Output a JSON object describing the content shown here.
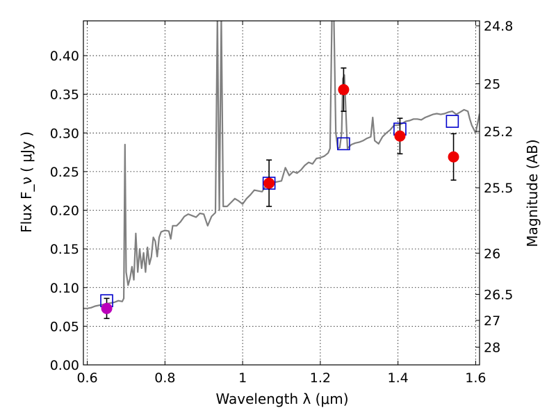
{
  "chart_data": {
    "type": "scatter",
    "title": "",
    "xlabel": "Wavelength  λ (μm)",
    "ylabel": "Flux  F_ν  ( μJy )",
    "ylabel_right": "Magnitude (AB)",
    "xlim": [
      0.59,
      1.61
    ],
    "ylim": [
      0.0,
      0.445
    ],
    "grid": true,
    "x_ticks": [
      0.6,
      0.8,
      1.0,
      1.2,
      1.4,
      1.6
    ],
    "x_tick_labels": [
      "0.6",
      "0.8",
      "1",
      "1.2",
      "1.4",
      "1.6"
    ],
    "y_ticks": [
      0.0,
      0.05,
      0.1,
      0.15,
      0.2,
      0.25,
      0.3,
      0.35,
      0.4
    ],
    "y_tick_labels": [
      "0.00",
      "0.05",
      "0.10",
      "0.15",
      "0.20",
      "0.25",
      "0.30",
      "0.35",
      "0.40"
    ],
    "right_ticks": [
      {
        "flux": 0.4386,
        "label": "24.8"
      },
      {
        "flux": 0.3636,
        "label": "25"
      },
      {
        "flux": 0.302,
        "label": "25.2"
      },
      {
        "flux": 0.2291,
        "label": "25.5"
      },
      {
        "flux": 0.1445,
        "label": "26"
      },
      {
        "flux": 0.0912,
        "label": "26.5"
      },
      {
        "flux": 0.0575,
        "label": "27"
      },
      {
        "flux": 0.0229,
        "label": "28"
      }
    ],
    "series": [
      {
        "kind": "spectrum",
        "color": "#808080",
        "points": [
          [
            0.59,
            0.073
          ],
          [
            0.6,
            0.073
          ],
          [
            0.61,
            0.074
          ],
          [
            0.62,
            0.076
          ],
          [
            0.63,
            0.077
          ],
          [
            0.64,
            0.078
          ],
          [
            0.65,
            0.079
          ],
          [
            0.66,
            0.08
          ],
          [
            0.67,
            0.081
          ],
          [
            0.68,
            0.083
          ],
          [
            0.69,
            0.082
          ],
          [
            0.694,
            0.086
          ],
          [
            0.697,
            0.285
          ],
          [
            0.7,
            0.12
          ],
          [
            0.705,
            0.103
          ],
          [
            0.71,
            0.112
          ],
          [
            0.715,
            0.127
          ],
          [
            0.72,
            0.11
          ],
          [
            0.725,
            0.17
          ],
          [
            0.73,
            0.12
          ],
          [
            0.735,
            0.15
          ],
          [
            0.74,
            0.125
          ],
          [
            0.745,
            0.145
          ],
          [
            0.75,
            0.12
          ],
          [
            0.755,
            0.152
          ],
          [
            0.76,
            0.13
          ],
          [
            0.765,
            0.14
          ],
          [
            0.77,
            0.165
          ],
          [
            0.775,
            0.16
          ],
          [
            0.78,
            0.14
          ],
          [
            0.785,
            0.165
          ],
          [
            0.79,
            0.172
          ],
          [
            0.8,
            0.174
          ],
          [
            0.81,
            0.173
          ],
          [
            0.815,
            0.163
          ],
          [
            0.82,
            0.18
          ],
          [
            0.83,
            0.18
          ],
          [
            0.84,
            0.185
          ],
          [
            0.85,
            0.192
          ],
          [
            0.86,
            0.195
          ],
          [
            0.87,
            0.193
          ],
          [
            0.88,
            0.191
          ],
          [
            0.89,
            0.196
          ],
          [
            0.9,
            0.195
          ],
          [
            0.91,
            0.18
          ],
          [
            0.92,
            0.192
          ],
          [
            0.93,
            0.197
          ],
          [
            0.935,
            0.45
          ],
          [
            0.94,
            0.2
          ],
          [
            0.945,
            0.45
          ],
          [
            0.95,
            0.205
          ],
          [
            0.96,
            0.205
          ],
          [
            0.97,
            0.21
          ],
          [
            0.98,
            0.215
          ],
          [
            0.99,
            0.212
          ],
          [
            1.0,
            0.208
          ],
          [
            1.01,
            0.215
          ],
          [
            1.02,
            0.22
          ],
          [
            1.03,
            0.226
          ],
          [
            1.04,
            0.225
          ],
          [
            1.05,
            0.224
          ],
          [
            1.06,
            0.232
          ],
          [
            1.07,
            0.235
          ],
          [
            1.08,
            0.236
          ],
          [
            1.09,
            0.237
          ],
          [
            1.1,
            0.238
          ],
          [
            1.11,
            0.255
          ],
          [
            1.12,
            0.245
          ],
          [
            1.13,
            0.25
          ],
          [
            1.14,
            0.248
          ],
          [
            1.15,
            0.252
          ],
          [
            1.16,
            0.258
          ],
          [
            1.17,
            0.262
          ],
          [
            1.18,
            0.26
          ],
          [
            1.19,
            0.267
          ],
          [
            1.2,
            0.268
          ],
          [
            1.21,
            0.27
          ],
          [
            1.22,
            0.274
          ],
          [
            1.225,
            0.28
          ],
          [
            1.23,
            0.45
          ],
          [
            1.235,
            0.45
          ],
          [
            1.24,
            0.3
          ],
          [
            1.245,
            0.28
          ],
          [
            1.25,
            0.281
          ],
          [
            1.255,
            0.3
          ],
          [
            1.258,
            0.37
          ],
          [
            1.262,
            0.375
          ],
          [
            1.268,
            0.3
          ],
          [
            1.27,
            0.28
          ],
          [
            1.28,
            0.285
          ],
          [
            1.29,
            0.287
          ],
          [
            1.3,
            0.288
          ],
          [
            1.31,
            0.29
          ],
          [
            1.32,
            0.293
          ],
          [
            1.33,
            0.295
          ],
          [
            1.335,
            0.32
          ],
          [
            1.34,
            0.29
          ],
          [
            1.35,
            0.286
          ],
          [
            1.36,
            0.295
          ],
          [
            1.37,
            0.3
          ],
          [
            1.38,
            0.304
          ],
          [
            1.39,
            0.31
          ],
          [
            1.4,
            0.31
          ],
          [
            1.41,
            0.312
          ],
          [
            1.42,
            0.315
          ],
          [
            1.43,
            0.316
          ],
          [
            1.44,
            0.318
          ],
          [
            1.45,
            0.318
          ],
          [
            1.46,
            0.317
          ],
          [
            1.47,
            0.32
          ],
          [
            1.48,
            0.322
          ],
          [
            1.49,
            0.324
          ],
          [
            1.5,
            0.325
          ],
          [
            1.51,
            0.324
          ],
          [
            1.52,
            0.325
          ],
          [
            1.53,
            0.327
          ],
          [
            1.54,
            0.328
          ],
          [
            1.55,
            0.324
          ],
          [
            1.56,
            0.327
          ],
          [
            1.57,
            0.33
          ],
          [
            1.58,
            0.328
          ],
          [
            1.585,
            0.318
          ],
          [
            1.59,
            0.31
          ],
          [
            1.6,
            0.3
          ],
          [
            1.61,
            0.325
          ]
        ]
      },
      {
        "kind": "model_boxes",
        "color": "#0000cc",
        "points": [
          [
            0.65,
            0.083
          ],
          [
            1.068,
            0.235
          ],
          [
            1.26,
            0.286
          ],
          [
            1.405,
            0.305
          ],
          [
            1.54,
            0.315
          ]
        ]
      },
      {
        "kind": "observed",
        "color": "#ee0000",
        "points": [
          {
            "x": 1.068,
            "y": 0.235,
            "err": 0.03
          },
          {
            "x": 1.26,
            "y": 0.356,
            "err": 0.028
          },
          {
            "x": 1.405,
            "y": 0.296,
            "err": 0.023
          },
          {
            "x": 1.543,
            "y": 0.269,
            "err": 0.03
          }
        ]
      },
      {
        "kind": "observed",
        "color": "#bb00bb",
        "points": [
          {
            "x": 0.65,
            "y": 0.073,
            "err": 0.013
          }
        ]
      }
    ]
  }
}
